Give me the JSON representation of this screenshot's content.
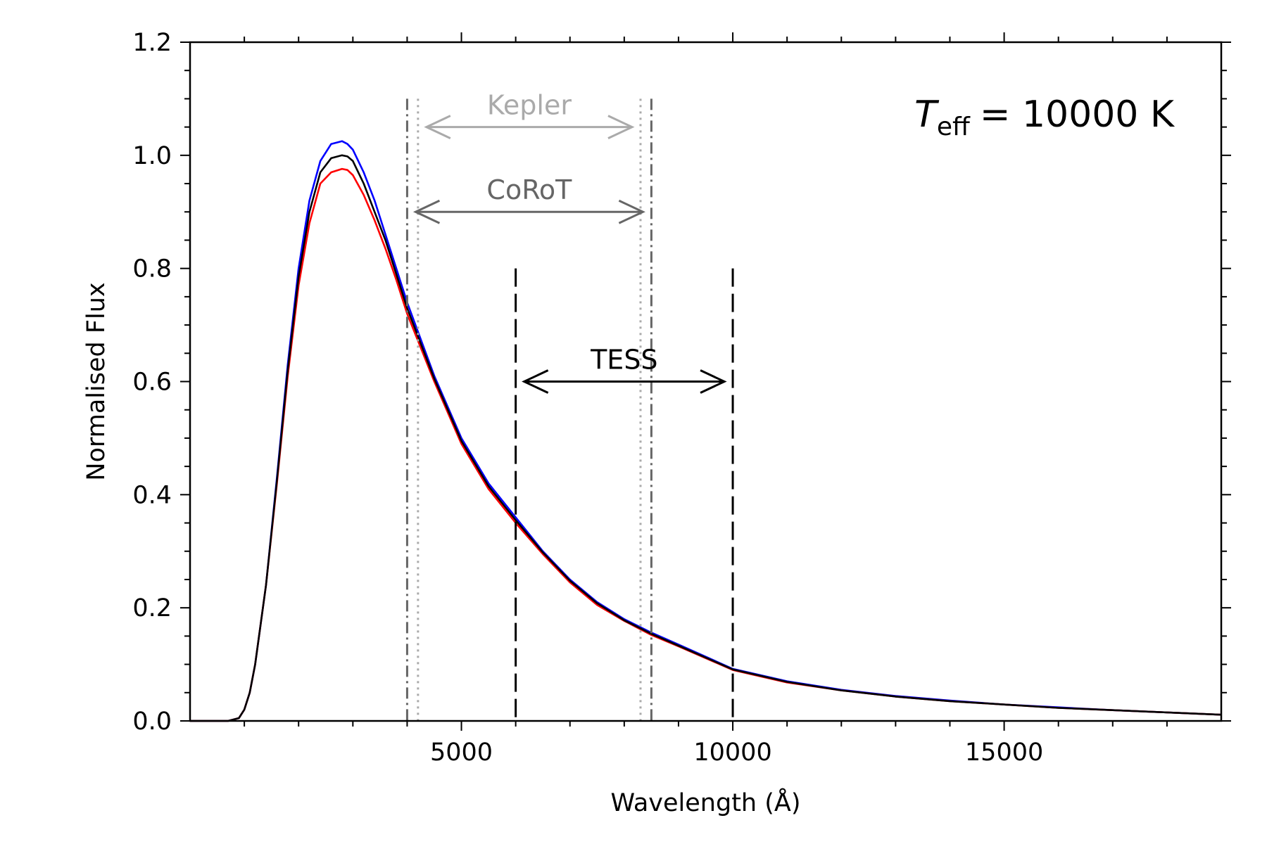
{
  "chart_data": {
    "type": "line",
    "title": "",
    "xlabel": "Wavelength (Å)",
    "ylabel": "Normalised Flux",
    "xlim": [
      0,
      19000
    ],
    "ylim": [
      0,
      1.2
    ],
    "x_ticks": [
      5000,
      10000,
      15000
    ],
    "x_tick_labels": [
      "5000",
      "10000",
      "15000"
    ],
    "y_ticks": [
      0.0,
      0.2,
      0.4,
      0.6,
      0.8,
      1.0,
      1.2
    ],
    "y_tick_labels": [
      "0.0",
      "0.2",
      "0.4",
      "0.6",
      "0.8",
      "1.0",
      "1.2"
    ],
    "grid": false,
    "annotation": {
      "teff_symbol": "T",
      "teff_subscript": "eff",
      "teff_value": "= 10000 K"
    },
    "series": [
      {
        "color": "#0000ff",
        "x": [
          700,
          900,
          1000,
          1100,
          1200,
          1400,
          1600,
          1800,
          2000,
          2200,
          2400,
          2600,
          2800,
          2900,
          3000,
          3200,
          3400,
          3600,
          3800,
          4000,
          4500,
          5000,
          5500,
          6000,
          6500,
          7000,
          7500,
          8000,
          8500,
          9000,
          10000,
          11000,
          12000,
          13000,
          14000,
          15000,
          16000,
          17000,
          18000,
          19000
        ],
        "y": [
          0.0,
          0.005,
          0.02,
          0.05,
          0.1,
          0.24,
          0.43,
          0.63,
          0.8,
          0.92,
          0.99,
          1.02,
          1.025,
          1.02,
          1.01,
          0.97,
          0.92,
          0.86,
          0.8,
          0.74,
          0.61,
          0.5,
          0.42,
          0.36,
          0.3,
          0.25,
          0.21,
          0.18,
          0.156,
          0.135,
          0.092,
          0.07,
          0.055,
          0.044,
          0.036,
          0.029,
          0.024,
          0.019,
          0.015,
          0.011
        ]
      },
      {
        "color": "#ff0000",
        "x": [
          700,
          900,
          1000,
          1100,
          1200,
          1400,
          1600,
          1800,
          2000,
          2200,
          2400,
          2600,
          2800,
          2900,
          3000,
          3200,
          3400,
          3600,
          3800,
          4000,
          4500,
          5000,
          5500,
          6000,
          6500,
          7000,
          7500,
          8000,
          8500,
          9000,
          10000,
          11000,
          12000,
          13000,
          14000,
          15000,
          16000,
          17000,
          18000,
          19000
        ],
        "y": [
          0.0,
          0.005,
          0.02,
          0.05,
          0.1,
          0.24,
          0.42,
          0.61,
          0.77,
          0.88,
          0.95,
          0.97,
          0.976,
          0.974,
          0.965,
          0.93,
          0.885,
          0.835,
          0.78,
          0.72,
          0.6,
          0.49,
          0.41,
          0.35,
          0.295,
          0.245,
          0.205,
          0.177,
          0.152,
          0.132,
          0.09,
          0.068,
          0.054,
          0.043,
          0.035,
          0.029,
          0.023,
          0.019,
          0.015,
          0.011
        ]
      },
      {
        "color": "#000000",
        "x": [
          700,
          900,
          1000,
          1100,
          1200,
          1400,
          1600,
          1800,
          2000,
          2200,
          2400,
          2600,
          2800,
          2900,
          3000,
          3200,
          3400,
          3600,
          3800,
          4000,
          4500,
          5000,
          5500,
          6000,
          6500,
          7000,
          7500,
          8000,
          8500,
          9000,
          10000,
          11000,
          12000,
          13000,
          14000,
          15000,
          16000,
          17000,
          18000,
          19000
        ],
        "y": [
          0.0,
          0.005,
          0.02,
          0.05,
          0.1,
          0.24,
          0.425,
          0.62,
          0.785,
          0.9,
          0.97,
          0.995,
          1.0,
          0.998,
          0.99,
          0.95,
          0.9,
          0.85,
          0.79,
          0.73,
          0.605,
          0.495,
          0.415,
          0.355,
          0.298,
          0.248,
          0.208,
          0.178,
          0.154,
          0.133,
          0.091,
          0.069,
          0.054,
          0.043,
          0.035,
          0.029,
          0.023,
          0.019,
          0.015,
          0.011
        ]
      }
    ],
    "bands": [
      {
        "name": "Kepler",
        "color": "#aaaaaa",
        "line_style": "dotted",
        "lower": 4200,
        "upper": 8300,
        "line_top": 1.1,
        "arrow_y": 1.05,
        "label_y": 1.09
      },
      {
        "name": "CoRoT",
        "color": "#666666",
        "line_style": "dashdot",
        "lower": 4000,
        "upper": 8500,
        "line_top": 1.1,
        "arrow_y": 0.9,
        "label_y": 0.94
      },
      {
        "name": "TESS",
        "color": "#000000",
        "line_style": "dashed",
        "lower": 6000,
        "upper": 10000,
        "line_top": 0.8,
        "arrow_y": 0.6,
        "label_y": 0.64
      }
    ]
  }
}
